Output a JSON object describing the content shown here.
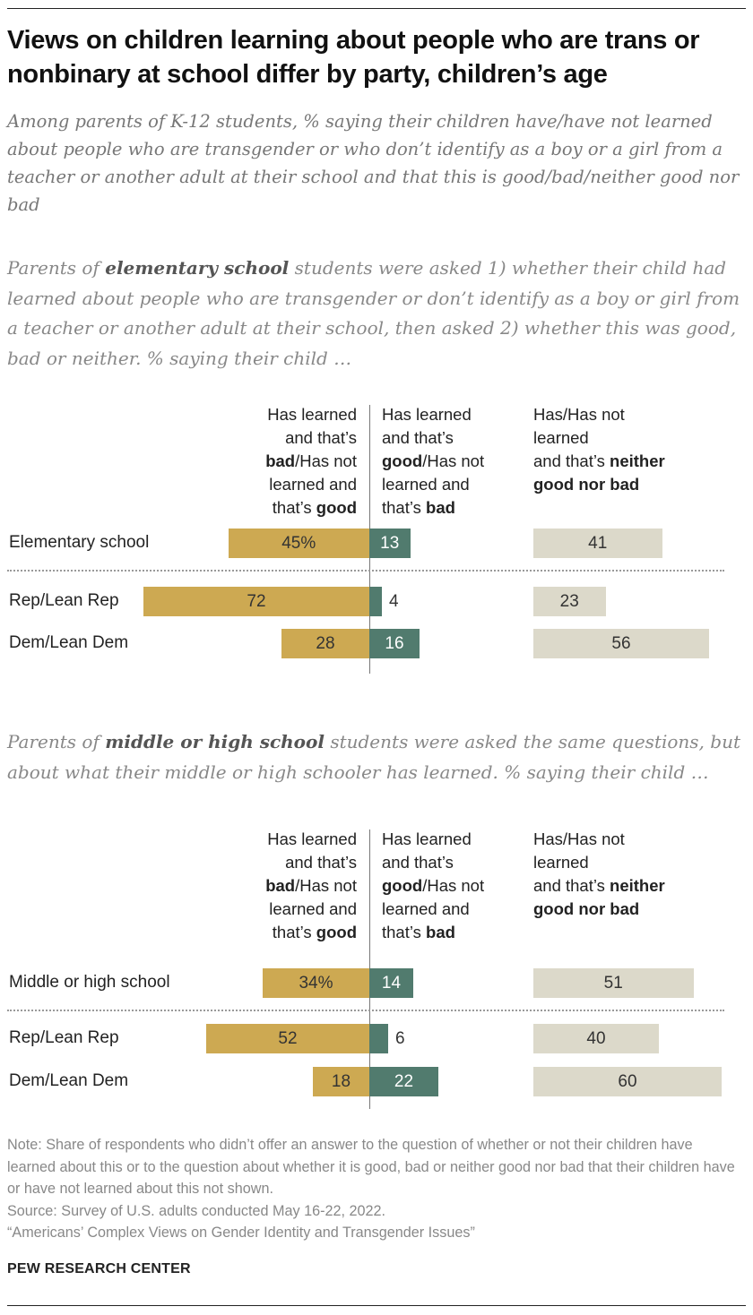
{
  "title": "Views on children learning about people who are trans or nonbinary at school differ by party, children’s age",
  "subtitle": "Among parents of K-12 students, % saying their children have/have not learned about people who are transgender or who don’t identify as a boy or a girl from a teacher or another adult at their school and that this is good/bad/neither good nor bad",
  "colors": {
    "bad": "#CDA952",
    "good": "#517B6E",
    "neither": "#DCD9CA"
  },
  "chart_data": [
    {
      "type": "bar",
      "orientation": "horizontal",
      "stacked": "diverging",
      "intro": [
        {
          "t": "Parents of "
        },
        {
          "t": "elementary school",
          "b": true
        },
        {
          "t": " students were asked 1) whether their child had learned about people who are transgender or don’t identify as a boy or girl from a teacher or another adult at their school, then asked 2) whether this was good, bad or neither. % saying their child …"
        }
      ],
      "headers": [
        [
          {
            "t": "Has learned\nand that’s\n"
          },
          {
            "t": "bad",
            "b": true
          },
          {
            "t": "/Has not\nlearned and\nthat’s "
          },
          {
            "t": "good",
            "b": true
          }
        ],
        [
          {
            "t": "Has learned\nand that’s\n"
          },
          {
            "t": "good",
            "b": true
          },
          {
            "t": "/Has not\nlearned and\nthat’s "
          },
          {
            "t": "bad",
            "b": true
          }
        ],
        [
          {
            "t": "Has/Has not\nlearned\nand that’s "
          },
          {
            "t": "neither\ngood nor bad",
            "b": true
          }
        ]
      ],
      "categories": [
        "Elementary school",
        "Rep/Lean Rep",
        "Dem/Lean Dem"
      ],
      "series": [
        {
          "key": "bad",
          "values": [
            45,
            72,
            28
          ],
          "labels": [
            "45%",
            "72",
            "28"
          ]
        },
        {
          "key": "good",
          "values": [
            13,
            4,
            16
          ],
          "labels": [
            "13",
            "4",
            "16"
          ]
        },
        {
          "key": "neither",
          "values": [
            41,
            23,
            56
          ],
          "labels": [
            "41",
            "23",
            "56"
          ]
        }
      ]
    },
    {
      "type": "bar",
      "orientation": "horizontal",
      "stacked": "diverging",
      "intro": [
        {
          "t": "Parents of "
        },
        {
          "t": "middle or high school",
          "b": true
        },
        {
          "t": " students were asked the same questions, but about what their middle or high schooler has learned. % saying their child …"
        }
      ],
      "headers": [
        [
          {
            "t": "Has learned\nand that’s\n"
          },
          {
            "t": "bad",
            "b": true
          },
          {
            "t": "/Has not\nlearned and\nthat’s "
          },
          {
            "t": "good",
            "b": true
          }
        ],
        [
          {
            "t": "Has learned\nand that’s\n"
          },
          {
            "t": "good",
            "b": true
          },
          {
            "t": "/Has not\nlearned and\nthat’s "
          },
          {
            "t": "bad",
            "b": true
          }
        ],
        [
          {
            "t": "Has/Has not\nlearned\nand that’s "
          },
          {
            "t": "neither\ngood nor bad",
            "b": true
          }
        ]
      ],
      "categories": [
        "Middle or high school",
        "Rep/Lean Rep",
        "Dem/Lean Dem"
      ],
      "series": [
        {
          "key": "bad",
          "values": [
            34,
            52,
            18
          ],
          "labels": [
            "34%",
            "52",
            "18"
          ]
        },
        {
          "key": "good",
          "values": [
            14,
            6,
            22
          ],
          "labels": [
            "14",
            "6",
            "22"
          ]
        },
        {
          "key": "neither",
          "values": [
            51,
            40,
            60
          ],
          "labels": [
            "51",
            "40",
            "60"
          ]
        }
      ]
    }
  ],
  "note": "Note: Share of respondents who didn’t offer an answer to the question of whether or not their children have learned about this or to the question about whether it is good, bad or neither good nor bad that their children have or have not learned about this not shown.",
  "source": "Source: Survey of U.S. adults conducted May 16-22, 2022.",
  "report": "“Americans’ Complex Views on Gender Identity and Transgender Issues”",
  "brand": "PEW RESEARCH CENTER"
}
